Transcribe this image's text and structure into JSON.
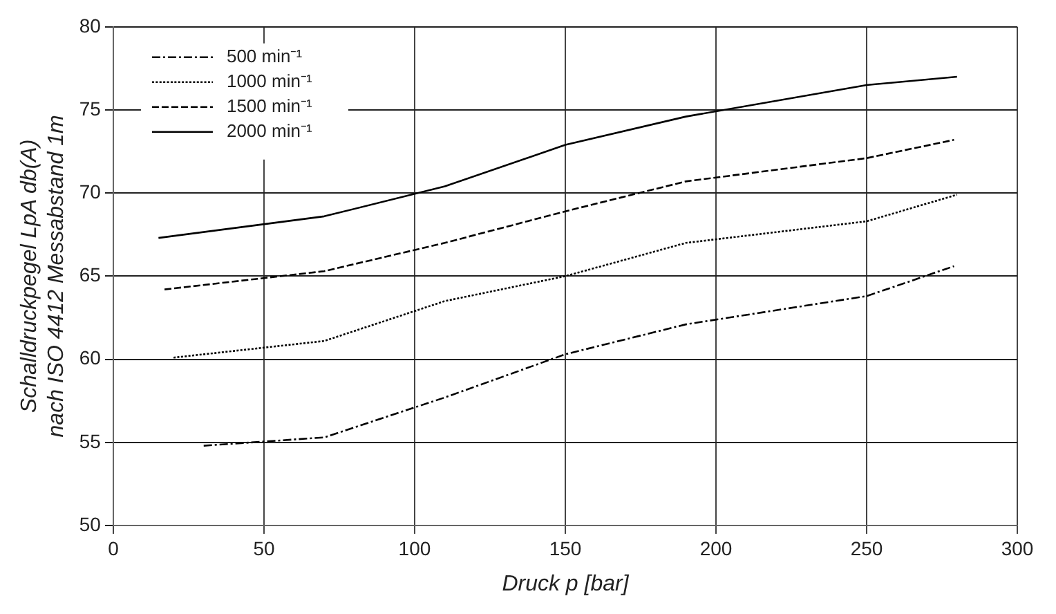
{
  "chart_data": {
    "type": "line",
    "xlabel": "Druck p [bar]",
    "ylabel": "Schalldruckpegel LpA db(A)\nnach ISO 4412 Messabstand 1m",
    "xlim": [
      0,
      300
    ],
    "xticks": [
      0,
      50,
      100,
      150,
      200,
      250,
      300
    ],
    "ylim": [
      50,
      80
    ],
    "yticks": [
      50,
      55,
      60,
      65,
      70,
      75,
      80
    ],
    "grid": true,
    "legend": "top left",
    "marker": "none",
    "series": [
      {
        "name": "500 min⁻¹",
        "color": "#000000",
        "line_style": "dashdot",
        "x": [
          30,
          70,
          110,
          150,
          190,
          250,
          279
        ],
        "values": [
          54.8,
          55.3,
          57.7,
          60.3,
          62.1,
          63.8,
          65.6
        ]
      },
      {
        "name": "1000 min⁻¹",
        "color": "#000000",
        "line_style": "dotted",
        "x": [
          20,
          70,
          110,
          150,
          190,
          250,
          280
        ],
        "values": [
          60.1,
          61.1,
          63.5,
          65.0,
          67.0,
          68.3,
          69.9
        ]
      },
      {
        "name": "1500 min⁻¹",
        "color": "#000000",
        "line_style": "dashed",
        "x": [
          17,
          70,
          110,
          150,
          190,
          250,
          279
        ],
        "values": [
          64.2,
          65.3,
          67.0,
          68.9,
          70.7,
          72.1,
          73.2
        ]
      },
      {
        "name": "2000 min⁻¹",
        "color": "#000000",
        "line_style": "solid",
        "x": [
          15,
          70,
          110,
          150,
          190,
          250,
          280
        ],
        "values": [
          67.3,
          68.6,
          70.4,
          72.9,
          74.6,
          76.5,
          77.0
        ]
      }
    ]
  }
}
